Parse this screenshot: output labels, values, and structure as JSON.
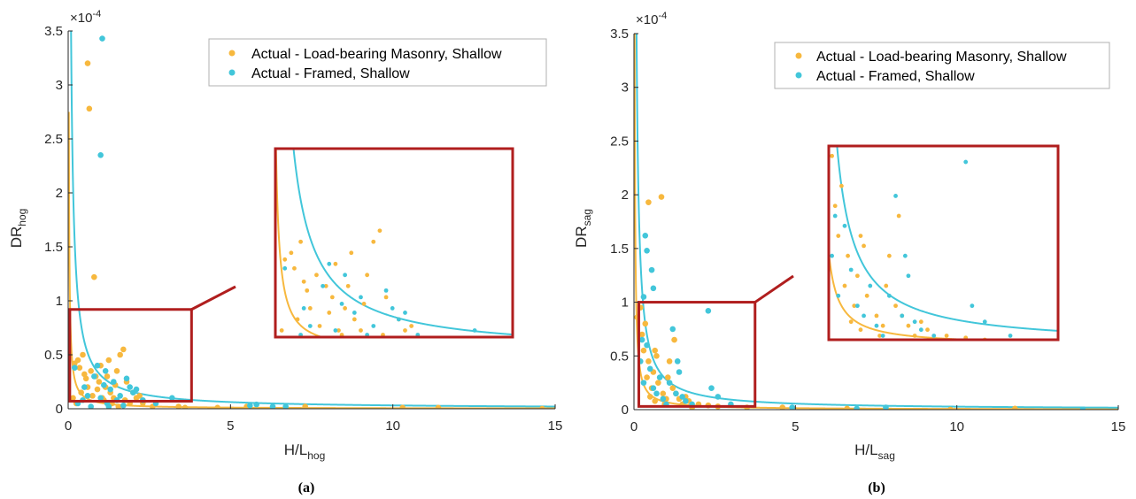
{
  "colors": {
    "masonry": "#F7B83E",
    "framed": "#42C6DA",
    "zoom": "#B01E1E",
    "axis": "#262626"
  },
  "legend": [
    "Actual - Load-bearing Masonry, Shallow",
    "Actual - Framed, Shallow"
  ],
  "chart_data": [
    {
      "type": "scatter",
      "panel_label": "(a)",
      "xlabel_main": "H/L",
      "xlabel_sub": "hog",
      "ylabel_main": "DR",
      "ylabel_sub": "hog",
      "exponent_label": "×10",
      "exponent_power": "-4",
      "xlim": [
        0,
        15
      ],
      "ylim": [
        0,
        3.5
      ],
      "xticks": [
        "0",
        "5",
        "10",
        "15"
      ],
      "yticks": [
        "0",
        "0.5",
        "1",
        "1.5",
        "2",
        "2.5",
        "3",
        "3.5"
      ],
      "zoom_region": {
        "x": [
          0.05,
          3.8
        ],
        "y": [
          0.07,
          0.92
        ]
      },
      "series": [
        {
          "name": "Actual - Load-bearing Masonry, Shallow",
          "points": [
            [
              0.2,
              0.42
            ],
            [
              0.3,
              0.45
            ],
            [
              0.35,
              0.38
            ],
            [
              0.45,
              0.5
            ],
            [
              0.5,
              0.32
            ],
            [
              0.55,
              0.28
            ],
            [
              0.6,
              3.2
            ],
            [
              0.6,
              0.2
            ],
            [
              0.65,
              2.78
            ],
            [
              0.7,
              0.35
            ],
            [
              0.75,
              0.12
            ],
            [
              0.8,
              1.22
            ],
            [
              0.85,
              0.3
            ],
            [
              0.9,
              0.18
            ],
            [
              0.95,
              0.25
            ],
            [
              1.0,
              0.4
            ],
            [
              1.05,
              0.1
            ],
            [
              1.1,
              0.08
            ],
            [
              1.15,
              0.2
            ],
            [
              1.2,
              0.3
            ],
            [
              1.25,
              0.45
            ],
            [
              1.3,
              0.15
            ],
            [
              1.35,
              0.05
            ],
            [
              1.4,
              0.1
            ],
            [
              1.45,
              0.22
            ],
            [
              1.5,
              0.35
            ],
            [
              1.6,
              0.5
            ],
            [
              1.7,
              0.55
            ],
            [
              1.8,
              0.25
            ],
            [
              1.9,
              0.05
            ],
            [
              2.0,
              0.15
            ],
            [
              2.1,
              0.1
            ],
            [
              2.3,
              0.05
            ],
            [
              2.6,
              0.02
            ],
            [
              3.4,
              0.02
            ],
            [
              3.6,
              0.01
            ],
            [
              4.6,
              0.01
            ],
            [
              5.5,
              0.02
            ],
            [
              7.3,
              0.02
            ],
            [
              10.3,
              0.01
            ],
            [
              11.4,
              0.01
            ],
            [
              14.6,
              0.0
            ],
            [
              0.15,
              0.1
            ],
            [
              0.25,
              0.05
            ],
            [
              1.55,
              0.02
            ],
            [
              1.75,
              0.08
            ],
            [
              0.4,
              0.15
            ],
            [
              2.2,
              0.12
            ]
          ],
          "curve_k": 0.055
        },
        {
          "name": "Actual - Framed, Shallow",
          "points": [
            [
              1.05,
              3.43
            ],
            [
              1.0,
              2.35
            ],
            [
              0.2,
              0.38
            ],
            [
              0.3,
              0.05
            ],
            [
              0.5,
              0.2
            ],
            [
              0.6,
              0.12
            ],
            [
              0.7,
              0.02
            ],
            [
              0.8,
              0.3
            ],
            [
              0.9,
              0.4
            ],
            [
              1.0,
              0.1
            ],
            [
              1.1,
              0.22
            ],
            [
              1.2,
              0.05
            ],
            [
              1.3,
              0.18
            ],
            [
              1.4,
              0.25
            ],
            [
              1.5,
              0.08
            ],
            [
              1.6,
              0.12
            ],
            [
              1.7,
              0.03
            ],
            [
              1.8,
              0.28
            ],
            [
              1.9,
              0.2
            ],
            [
              2.0,
              0.15
            ],
            [
              2.1,
              0.18
            ],
            [
              2.3,
              0.08
            ],
            [
              2.7,
              0.05
            ],
            [
              3.2,
              0.1
            ],
            [
              5.6,
              0.03
            ],
            [
              5.8,
              0.04
            ],
            [
              6.3,
              0.02
            ],
            [
              6.7,
              0.02
            ],
            [
              1.15,
              0.35
            ],
            [
              0.45,
              0.08
            ],
            [
              1.25,
              0.02
            ]
          ],
          "curve_k": 0.31
        }
      ]
    },
    {
      "type": "scatter",
      "panel_label": "(b)",
      "xlabel_main": "H/L",
      "xlabel_sub": "sag",
      "ylabel_main": "DR",
      "ylabel_sub": "sag",
      "exponent_label": "×10",
      "exponent_power": "-4",
      "xlim": [
        0,
        15
      ],
      "ylim": [
        0,
        3.5
      ],
      "xticks": [
        "0",
        "5",
        "10",
        "15"
      ],
      "yticks": [
        "0",
        "0.5",
        "1",
        "1.5",
        "2",
        "2.5",
        "3",
        "3.5"
      ],
      "zoom_region": {
        "x": [
          0.15,
          3.75
        ],
        "y": [
          0.03,
          1.0
        ]
      },
      "series": [
        {
          "name": "Actual - Load-bearing Masonry, Shallow",
          "points": [
            [
              0.1,
              0.86
            ],
            [
              0.2,
              0.95
            ],
            [
              0.25,
              0.7
            ],
            [
              0.3,
              0.55
            ],
            [
              0.35,
              0.8
            ],
            [
              0.4,
              0.3
            ],
            [
              0.45,
              0.45
            ],
            [
              0.5,
              0.12
            ],
            [
              0.55,
              0.2
            ],
            [
              0.6,
              0.35
            ],
            [
              0.65,
              0.08
            ],
            [
              0.7,
              0.5
            ],
            [
              0.75,
              0.25
            ],
            [
              0.85,
              1.98
            ],
            [
              0.9,
              0.15
            ],
            [
              0.95,
              0.05
            ],
            [
              1.0,
              0.1
            ],
            [
              1.05,
              0.3
            ],
            [
              1.1,
              0.45
            ],
            [
              1.2,
              0.2
            ],
            [
              1.3,
              0.15
            ],
            [
              1.4,
              0.1
            ],
            [
              1.5,
              0.05
            ],
            [
              1.6,
              0.12
            ],
            [
              1.7,
              0.08
            ],
            [
              1.8,
              0.02
            ],
            [
              2.0,
              0.05
            ],
            [
              2.3,
              0.04
            ],
            [
              2.6,
              0.03
            ],
            [
              3.5,
              0.02
            ],
            [
              4.6,
              0.02
            ],
            [
              6.6,
              0.01
            ],
            [
              9.8,
              0.0
            ],
            [
              11.8,
              0.01
            ],
            [
              0.45,
              1.93
            ],
            [
              1.25,
              0.65
            ],
            [
              0.65,
              0.55
            ]
          ],
          "curve_k": 0.07
        },
        {
          "name": "Actual - Framed, Shallow",
          "points": [
            [
              0.35,
              1.62
            ],
            [
              0.4,
              1.48
            ],
            [
              0.55,
              1.3
            ],
            [
              0.6,
              1.13
            ],
            [
              0.3,
              1.05
            ],
            [
              0.2,
              0.45
            ],
            [
              0.3,
              0.25
            ],
            [
              0.4,
              0.6
            ],
            [
              0.5,
              0.38
            ],
            [
              0.6,
              0.2
            ],
            [
              0.7,
              0.15
            ],
            [
              0.8,
              0.3
            ],
            [
              0.9,
              0.1
            ],
            [
              1.0,
              0.05
            ],
            [
              1.1,
              0.25
            ],
            [
              1.2,
              0.75
            ],
            [
              1.3,
              0.15
            ],
            [
              1.4,
              0.35
            ],
            [
              1.5,
              0.12
            ],
            [
              1.6,
              0.08
            ],
            [
              1.8,
              0.05
            ],
            [
              2.3,
              0.92
            ],
            [
              2.4,
              0.2
            ],
            [
              2.6,
              0.12
            ],
            [
              3.0,
              0.05
            ],
            [
              4.9,
              0.02
            ],
            [
              6.9,
              0.01
            ],
            [
              7.8,
              0.02
            ],
            [
              13.9,
              0.0
            ],
            [
              0.25,
              0.65
            ],
            [
              1.35,
              0.45
            ]
          ],
          "curve_k": 0.28
        }
      ]
    }
  ]
}
